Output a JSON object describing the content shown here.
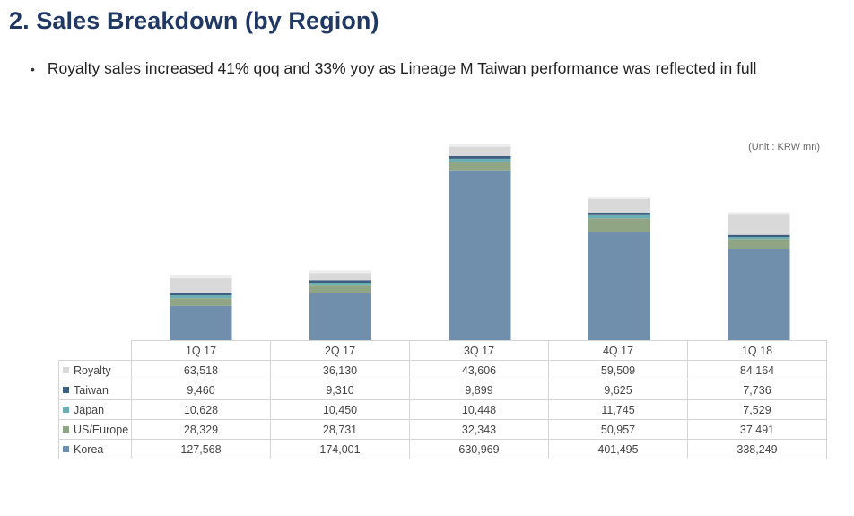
{
  "page": {
    "title": "2. Sales Breakdown (by Region)",
    "bullet": "Royalty sales increased 41% qoq and 33% yoy as Lineage M Taiwan performance was reflected in full",
    "unit": "(Unit : KRW mn)"
  },
  "colors": {
    "Royalty": "#d9d9d9",
    "Taiwan": "#3f5f82",
    "Japan": "#6bafb2",
    "US/Europe": "#8fa584",
    "Korea": "#6f8fad"
  },
  "chart_data": {
    "type": "bar",
    "stacked": true,
    "title": "",
    "xlabel": "",
    "ylabel": "",
    "categories": [
      "1Q 17",
      "2Q 17",
      "3Q 17",
      "4Q 17",
      "1Q 18"
    ],
    "series": [
      {
        "name": "Royalty",
        "values": [
          63518,
          36130,
          43606,
          59509,
          84164
        ]
      },
      {
        "name": "Taiwan",
        "values": [
          9460,
          9310,
          9899,
          9625,
          7736
        ]
      },
      {
        "name": "Japan",
        "values": [
          10628,
          10450,
          10448,
          11745,
          7529
        ]
      },
      {
        "name": "US/Europe",
        "values": [
          28329,
          28731,
          32343,
          50957,
          37491
        ]
      },
      {
        "name": "Korea",
        "values": [
          127568,
          174001,
          630969,
          401495,
          338249
        ]
      }
    ],
    "value_labels": {
      "Royalty": [
        "63,518",
        "36,130",
        "43,606",
        "59,509",
        "84,164"
      ],
      "Taiwan": [
        "9,460",
        "9,310",
        "9,899",
        "9,625",
        "7,736"
      ],
      "Japan": [
        "10,628",
        "10,450",
        "10,448",
        "11,745",
        "7,529"
      ],
      "US/Europe": [
        "28,329",
        "28,731",
        "32,343",
        "50,957",
        "37,491"
      ],
      "Korea": [
        "127,568",
        "174,001",
        "630,969",
        "401,495",
        "338,249"
      ]
    },
    "ylim": [
      0,
      740000
    ],
    "grid": false,
    "legend": "data-table"
  }
}
